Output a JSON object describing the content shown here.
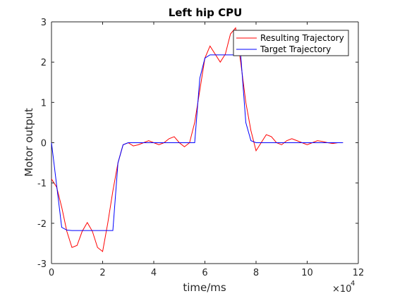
{
  "chart_data": {
    "type": "line",
    "title": "Left hip CPU",
    "xlabel": "time/ms",
    "ylabel": "Motor output",
    "x_exponent_label": "×10",
    "x_exponent_power": "4",
    "xlim": [
      0,
      120000
    ],
    "ylim": [
      -3,
      3
    ],
    "xticks": [
      0,
      20000,
      40000,
      60000,
      80000,
      100000,
      120000
    ],
    "xtick_labels": [
      "0",
      "2",
      "4",
      "6",
      "8",
      "10",
      "12"
    ],
    "yticks": [
      -3,
      -2,
      -1,
      0,
      1,
      2,
      3
    ],
    "ytick_labels": [
      "-3",
      "-2",
      "-1",
      "0",
      "1",
      "2",
      "3"
    ],
    "grid": false,
    "legend_position": "top-right",
    "series": [
      {
        "name": "Resulting Trajectory",
        "color": "#ff0000",
        "x": [
          0,
          1000,
          2000,
          4000,
          6000,
          8000,
          10000,
          12000,
          14000,
          16000,
          18000,
          20000,
          22000,
          24000,
          26000,
          28000,
          30000,
          32000,
          34000,
          36000,
          38000,
          40000,
          42000,
          44000,
          46000,
          48000,
          50000,
          52000,
          54000,
          56000,
          58000,
          60000,
          62000,
          64000,
          66000,
          68000,
          70000,
          72000,
          74000,
          76000,
          78000,
          80000,
          82000,
          84000,
          86000,
          88000,
          90000,
          92000,
          94000,
          96000,
          98000,
          100000,
          102000,
          104000,
          106000,
          108000,
          110000,
          112000,
          114000
        ],
        "y": [
          -0.9,
          -1.0,
          -1.1,
          -1.6,
          -2.2,
          -2.6,
          -2.55,
          -2.2,
          -1.98,
          -2.2,
          -2.6,
          -2.7,
          -2.0,
          -1.2,
          -0.5,
          -0.05,
          0.0,
          -0.08,
          -0.05,
          0.0,
          0.05,
          0.0,
          -0.05,
          0.0,
          0.1,
          0.15,
          0.0,
          -0.1,
          0.0,
          0.5,
          1.3,
          2.1,
          2.4,
          2.2,
          2.0,
          2.2,
          2.7,
          2.85,
          2.0,
          1.0,
          0.3,
          -0.2,
          0.0,
          0.2,
          0.15,
          0.0,
          -0.05,
          0.05,
          0.1,
          0.05,
          0.0,
          -0.05,
          0.0,
          0.05,
          0.03,
          0.0,
          -0.02,
          0.0,
          0.0
        ]
      },
      {
        "name": "Target Trajectory",
        "color": "#0000ff",
        "x": [
          0,
          4000,
          6000,
          8000,
          10000,
          12000,
          14000,
          16000,
          18000,
          20000,
          22000,
          24000,
          26000,
          28000,
          30000,
          32000,
          34000,
          36000,
          38000,
          40000,
          42000,
          44000,
          46000,
          48000,
          50000,
          52000,
          54000,
          56000,
          58000,
          60000,
          62000,
          64000,
          66000,
          68000,
          70000,
          72000,
          74000,
          76000,
          78000,
          80000,
          82000,
          84000,
          86000,
          88000,
          90000,
          92000,
          94000,
          96000,
          98000,
          100000,
          102000,
          104000,
          106000,
          108000,
          110000,
          112000,
          114000
        ],
        "y": [
          0.0,
          -2.1,
          -2.17,
          -2.18,
          -2.18,
          -2.18,
          -2.18,
          -2.18,
          -2.18,
          -2.18,
          -2.18,
          -2.18,
          -0.5,
          -0.05,
          0.0,
          0.0,
          0.0,
          0.0,
          0.0,
          0.0,
          0.0,
          0.0,
          0.0,
          0.0,
          0.0,
          0.0,
          0.0,
          0.0,
          1.6,
          2.1,
          2.18,
          2.18,
          2.18,
          2.18,
          2.18,
          2.18,
          2.18,
          0.5,
          0.05,
          0.0,
          0.0,
          0.0,
          0.0,
          0.0,
          0.0,
          0.0,
          0.0,
          0.0,
          0.0,
          0.0,
          0.0,
          0.0,
          0.0,
          0.0,
          0.0,
          0.0,
          0.0
        ]
      }
    ]
  }
}
